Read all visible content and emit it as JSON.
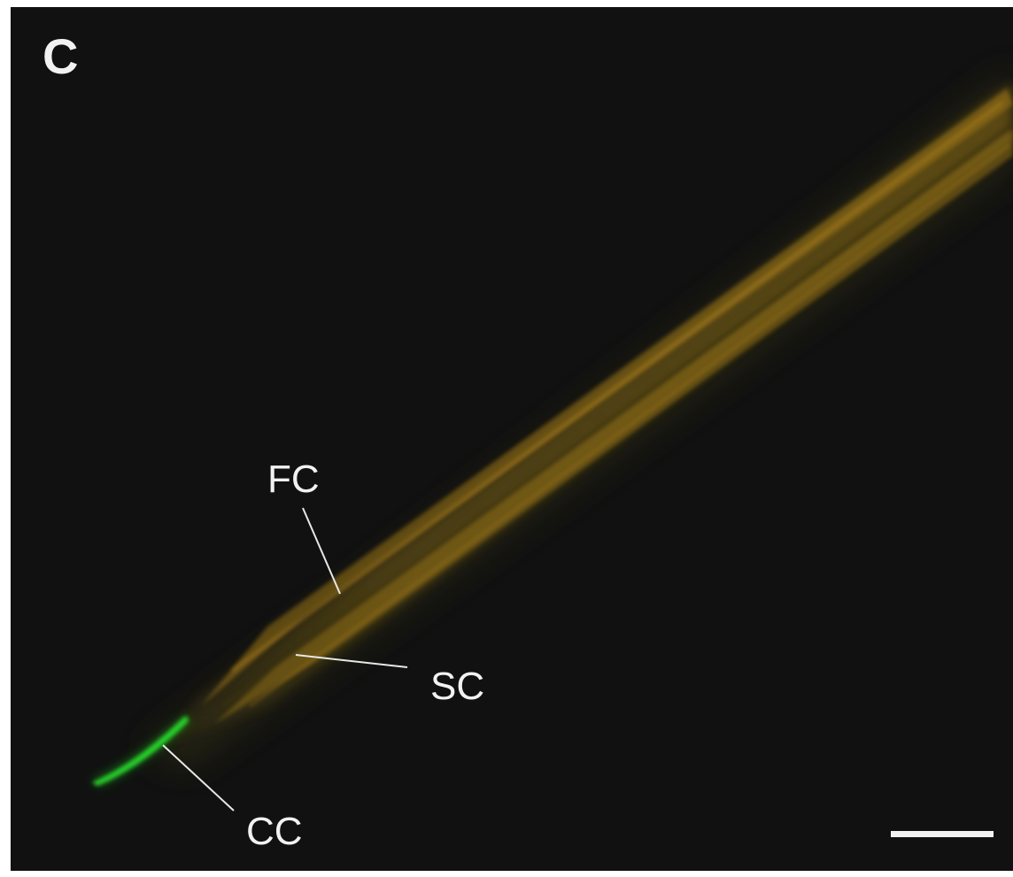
{
  "figure": {
    "panel_letter": "C",
    "annotations": {
      "fc": "FC",
      "sc": "SC",
      "cc": "CC"
    },
    "colors": {
      "background": "#111111",
      "fiber": "#8a6a18",
      "fiber_highlight": "#b07d20",
      "cell_glow": "#22c026",
      "text": "#f2f2f2"
    }
  }
}
